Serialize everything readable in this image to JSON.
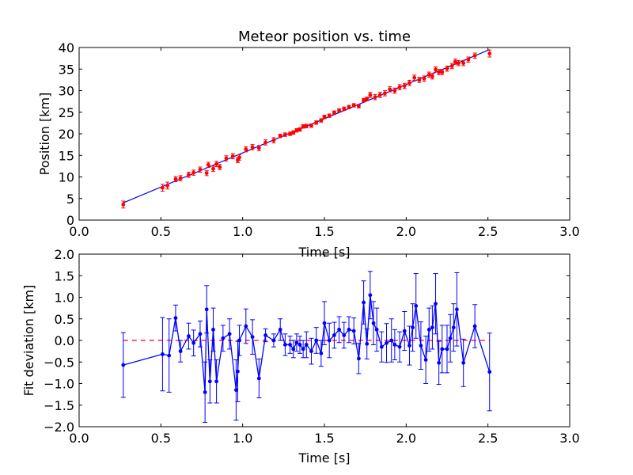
{
  "figure": {
    "background": "#ffffff"
  },
  "chart_data": [
    {
      "type": "scatter",
      "title": "Meteor position vs. time",
      "xlabel": "Time [s]",
      "ylabel": "Position [km]",
      "xlim": [
        0,
        3
      ],
      "ylim": [
        0,
        40
      ],
      "xticks": [
        "0.0",
        "0.5",
        "1.0",
        "1.5",
        "2.0",
        "2.5",
        "3.0"
      ],
      "yticks": [
        "0",
        "5",
        "10",
        "15",
        "20",
        "25",
        "30",
        "35",
        "40"
      ],
      "grid": false,
      "colors": {
        "points": "#ff0000",
        "fit": "#0000ff"
      },
      "fit_line": {
        "x": [
          0.27,
          2.51
        ],
        "y": [
          4.0,
          39.5
        ]
      },
      "series": [
        {
          "x": [
            0.27,
            0.51,
            0.54,
            0.59,
            0.62,
            0.67,
            0.7,
            0.74,
            0.78,
            0.79,
            0.82,
            0.84,
            0.86,
            0.9,
            0.94,
            0.97,
            0.98,
            1.02,
            1.06,
            1.1,
            1.14,
            1.19,
            1.23,
            1.26,
            1.29,
            1.31,
            1.33,
            1.35,
            1.37,
            1.39,
            1.42,
            1.45,
            1.48,
            1.5,
            1.53,
            1.56,
            1.59,
            1.62,
            1.65,
            1.68,
            1.71,
            1.74,
            1.76,
            1.78,
            1.81,
            1.84,
            1.87,
            1.9,
            1.93,
            1.96,
            1.99,
            2.02,
            2.05,
            2.08,
            2.11,
            2.14,
            2.16,
            2.18,
            2.2,
            2.22,
            2.25,
            2.28,
            2.3,
            2.32,
            2.35,
            2.38,
            2.42,
            2.51
          ],
          "y": [
            3.6,
            7.5,
            8.0,
            9.5,
            9.7,
            10.5,
            11.0,
            11.7,
            10.9,
            12.8,
            11.9,
            13.0,
            12.3,
            14.3,
            14.8,
            13.9,
            14.5,
            16.4,
            16.9,
            16.7,
            18.0,
            18.5,
            19.5,
            19.8,
            20.0,
            20.3,
            20.8,
            21.0,
            21.7,
            21.8,
            21.9,
            22.6,
            23.1,
            23.9,
            24.2,
            24.9,
            25.4,
            25.8,
            26.2,
            26.6,
            26.4,
            27.8,
            28.1,
            29.0,
            28.5,
            29.0,
            29.4,
            30.3,
            30.0,
            30.8,
            31.1,
            31.8,
            33.0,
            32.5,
            32.8,
            33.7,
            33.3,
            34.9,
            34.3,
            34.3,
            35.1,
            35.7,
            36.7,
            36.4,
            36.4,
            37.2,
            38.1,
            38.6
          ],
          "err": [
            0.8,
            0.8,
            0.8,
            0.6,
            0.6,
            0.6,
            0.6,
            0.6,
            0.6,
            0.6,
            0.6,
            0.6,
            0.6,
            0.6,
            0.6,
            0.6,
            0.6,
            0.6,
            0.6,
            0.6,
            0.6,
            0.6,
            0.4,
            0.4,
            0.4,
            0.4,
            0.4,
            0.4,
            0.4,
            0.4,
            0.4,
            0.4,
            0.4,
            0.4,
            0.4,
            0.4,
            0.4,
            0.4,
            0.4,
            0.4,
            0.4,
            0.4,
            0.4,
            0.6,
            0.6,
            0.6,
            0.6,
            0.6,
            0.6,
            0.6,
            0.6,
            0.6,
            0.6,
            0.6,
            0.6,
            0.6,
            0.6,
            0.6,
            0.6,
            0.6,
            0.6,
            0.6,
            0.6,
            0.6,
            0.6,
            0.6,
            0.6,
            0.8
          ]
        }
      ]
    },
    {
      "type": "line",
      "title": "",
      "xlabel": "Time [s]",
      "ylabel": "Fit deviation [km]",
      "xlim": [
        0,
        3
      ],
      "ylim": [
        -2,
        2
      ],
      "xticks": [
        "0.0",
        "0.5",
        "1.0",
        "1.5",
        "2.0",
        "2.5",
        "3.0"
      ],
      "yticks": [
        "2.0",
        "1.5",
        "1.0",
        "0.5",
        "0.0",
        "−0.5",
        "−1.0",
        "−1.5",
        "−2.0"
      ],
      "grid": false,
      "colors": {
        "series": "#0000ff",
        "zero_line": "#ff0000"
      },
      "zero_line": {
        "x": [
          0.27,
          2.51
        ],
        "y": [
          0,
          0
        ]
      },
      "series": [
        {
          "x": [
            0.27,
            0.51,
            0.55,
            0.59,
            0.62,
            0.67,
            0.7,
            0.74,
            0.77,
            0.78,
            0.8,
            0.82,
            0.84,
            0.88,
            0.92,
            0.96,
            0.97,
            0.98,
            1.02,
            1.06,
            1.1,
            1.14,
            1.19,
            1.23,
            1.26,
            1.29,
            1.31,
            1.33,
            1.35,
            1.37,
            1.39,
            1.42,
            1.45,
            1.48,
            1.5,
            1.53,
            1.56,
            1.59,
            1.62,
            1.65,
            1.68,
            1.71,
            1.74,
            1.76,
            1.78,
            1.8,
            1.82,
            1.85,
            1.88,
            1.91,
            1.93,
            1.96,
            1.99,
            2.02,
            2.04,
            2.06,
            2.09,
            2.12,
            2.14,
            2.16,
            2.18,
            2.2,
            2.22,
            2.25,
            2.27,
            2.29,
            2.31,
            2.35,
            2.42,
            2.51
          ],
          "y": [
            -0.57,
            -0.32,
            -0.35,
            0.52,
            -0.25,
            0.1,
            -0.06,
            0.15,
            -1.2,
            0.72,
            -0.95,
            0.25,
            -0.95,
            0.05,
            0.15,
            -1.15,
            -0.72,
            0.0,
            0.33,
            0.08,
            -0.88,
            0.12,
            0.0,
            0.25,
            -0.1,
            -0.1,
            -0.2,
            -0.05,
            -0.1,
            -0.2,
            -0.1,
            -0.25,
            0.0,
            -0.3,
            0.4,
            0.0,
            0.12,
            0.25,
            0.12,
            0.25,
            0.22,
            -0.42,
            0.88,
            -0.08,
            1.05,
            0.4,
            0.25,
            -0.15,
            -0.06,
            0.0,
            -0.1,
            -0.15,
            0.22,
            -0.12,
            0.3,
            0.8,
            -0.12,
            -0.45,
            0.25,
            0.3,
            0.85,
            -0.52,
            -0.2,
            -0.2,
            0.05,
            0.3,
            0.72,
            -0.52,
            0.33,
            -0.73
          ],
          "err": [
            0.75,
            0.85,
            0.85,
            0.3,
            0.25,
            0.3,
            0.3,
            0.3,
            0.7,
            0.55,
            0.5,
            0.5,
            0.5,
            0.3,
            0.35,
            0.7,
            0.7,
            0.35,
            0.4,
            0.4,
            0.45,
            0.15,
            0.15,
            0.25,
            0.25,
            0.2,
            0.2,
            0.2,
            0.2,
            0.2,
            0.3,
            0.3,
            0.3,
            0.3,
            0.5,
            0.4,
            0.3,
            0.3,
            0.3,
            0.3,
            0.3,
            0.35,
            0.5,
            0.35,
            0.55,
            0.5,
            0.5,
            0.35,
            0.45,
            0.5,
            0.35,
            0.35,
            0.45,
            0.45,
            0.55,
            0.75,
            0.55,
            0.55,
            0.5,
            0.5,
            0.7,
            0.5,
            0.55,
            0.55,
            0.55,
            0.55,
            0.85,
            0.55,
            0.5,
            0.9
          ]
        }
      ]
    }
  ]
}
